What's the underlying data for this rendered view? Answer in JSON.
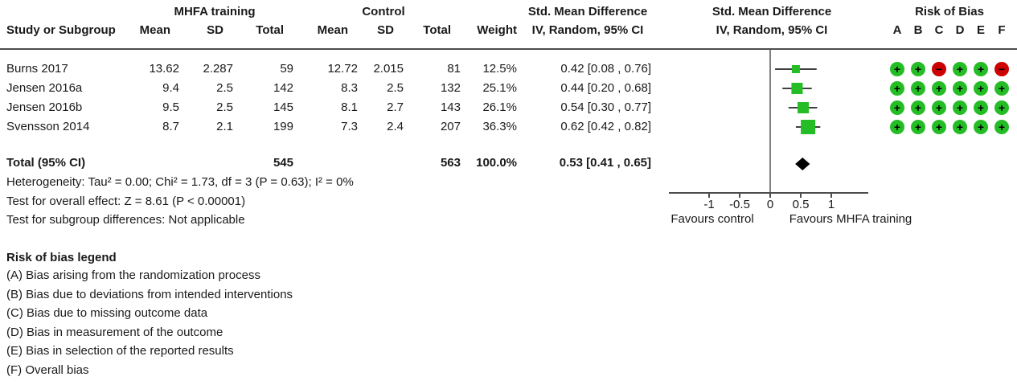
{
  "header": {
    "group1": "MHFA training",
    "group2": "Control",
    "study_col": "Study or Subgroup",
    "mean1": "Mean",
    "sd1": "SD",
    "total1": "Total",
    "mean2": "Mean",
    "sd2": "SD",
    "total2": "Total",
    "weight": "Weight",
    "smd_text_col": {
      "line1": "Std. Mean Difference",
      "line2": "IV, Random, 95% CI"
    },
    "smd_plot_col": {
      "line1": "Std. Mean Difference",
      "line2": "IV, Random, 95% CI"
    },
    "rob_col": {
      "title": "Risk of Bias",
      "letters": [
        "A",
        "B",
        "C",
        "D",
        "E",
        "F"
      ]
    }
  },
  "rows": [
    {
      "study": "Burns 2017",
      "mean1": "13.62",
      "sd1": "2.287",
      "total1": "59",
      "mean2": "12.72",
      "sd2": "2.015",
      "total2": "81",
      "weight": "12.5%",
      "ci": "0.42 [0.08 , 0.76]",
      "bias": [
        {
          "color": "green",
          "sym": "+"
        },
        {
          "color": "green",
          "sym": "+"
        },
        {
          "color": "red",
          "sym": "−"
        },
        {
          "color": "green",
          "sym": "+"
        },
        {
          "color": "green",
          "sym": "+"
        },
        {
          "color": "red",
          "sym": "−"
        }
      ]
    },
    {
      "study": "Jensen 2016a",
      "mean1": "9.4",
      "sd1": "2.5",
      "total1": "142",
      "mean2": "8.3",
      "sd2": "2.5",
      "total2": "132",
      "weight": "25.1%",
      "ci": "0.44 [0.20 , 0.68]",
      "bias": [
        {
          "color": "green",
          "sym": "+"
        },
        {
          "color": "green",
          "sym": "+"
        },
        {
          "color": "green",
          "sym": "+"
        },
        {
          "color": "green",
          "sym": "+"
        },
        {
          "color": "green",
          "sym": "+"
        },
        {
          "color": "green",
          "sym": "+"
        }
      ]
    },
    {
      "study": "Jensen 2016b",
      "mean1": "9.5",
      "sd1": "2.5",
      "total1": "145",
      "mean2": "8.1",
      "sd2": "2.7",
      "total2": "143",
      "weight": "26.1%",
      "ci": "0.54 [0.30 , 0.77]",
      "bias": [
        {
          "color": "green",
          "sym": "+"
        },
        {
          "color": "green",
          "sym": "+"
        },
        {
          "color": "green",
          "sym": "+"
        },
        {
          "color": "green",
          "sym": "+"
        },
        {
          "color": "green",
          "sym": "+"
        },
        {
          "color": "green",
          "sym": "+"
        }
      ]
    },
    {
      "study": "Svensson 2014",
      "mean1": "8.7",
      "sd1": "2.1",
      "total1": "199",
      "mean2": "7.3",
      "sd2": "2.4",
      "total2": "207",
      "weight": "36.3%",
      "ci": "0.62 [0.42 , 0.82]",
      "bias": [
        {
          "color": "green",
          "sym": "+"
        },
        {
          "color": "green",
          "sym": "+"
        },
        {
          "color": "green",
          "sym": "+"
        },
        {
          "color": "green",
          "sym": "+"
        },
        {
          "color": "green",
          "sym": "+"
        },
        {
          "color": "green",
          "sym": "+"
        }
      ]
    }
  ],
  "total_row": {
    "label": "Total (95% CI)",
    "total1": "545",
    "total2": "563",
    "weight": "100.0%",
    "ci": "0.53 [0.41 , 0.65]"
  },
  "footer": {
    "heterogeneity": "Heterogeneity: Tau² = 0.00; Chi² = 1.73, df = 3 (P = 0.63); I² = 0%",
    "overall_effect": "Test for overall effect: Z = 8.61 (P < 0.00001)",
    "subgroup": "Test for subgroup differences: Not applicable"
  },
  "legend": {
    "title": "Risk of bias legend",
    "items": [
      "(A) Bias arising from the randomization process",
      "(B) Bias due to deviations from intended interventions",
      "(C) Bias due to missing outcome data",
      "(D) Bias in measurement of the outcome",
      "(E) Bias in selection of the reported results",
      "(F) Overall bias"
    ]
  },
  "colors": {
    "green": "#25bd25",
    "red": "#cc0000",
    "line": "#4d4d4d",
    "axis_line": "#808080",
    "diamond": "#000000",
    "text": "#1a1a1a"
  },
  "chart_data": {
    "type": "forest",
    "effect_measure": "Std. Mean Difference, IV, Random, 95% CI",
    "studies": [
      {
        "name": "Burns 2017",
        "estimate": 0.42,
        "ci_low": 0.08,
        "ci_high": 0.76,
        "weight_pct": 12.5
      },
      {
        "name": "Jensen 2016a",
        "estimate": 0.44,
        "ci_low": 0.2,
        "ci_high": 0.68,
        "weight_pct": 25.1
      },
      {
        "name": "Jensen 2016b",
        "estimate": 0.54,
        "ci_low": 0.3,
        "ci_high": 0.77,
        "weight_pct": 26.1
      },
      {
        "name": "Svensson 2014",
        "estimate": 0.62,
        "ci_low": 0.42,
        "ci_high": 0.82,
        "weight_pct": 36.3
      }
    ],
    "total": {
      "name": "Total (95% CI)",
      "estimate": 0.53,
      "ci_low": 0.41,
      "ci_high": 0.65,
      "weight_pct": 100.0
    },
    "heterogeneity": {
      "tau2": 0.0,
      "chi2": 1.73,
      "df": 3,
      "p": 0.63,
      "i2_pct": 0
    },
    "overall_effect": {
      "z": 8.61,
      "p": "< 0.00001"
    },
    "axis": {
      "ticks": [
        -1,
        -0.5,
        0,
        0.5,
        1
      ],
      "tick_labels": [
        "-1",
        "-0.5",
        "0",
        "0.5",
        "1"
      ],
      "range_shown": [
        -1.66,
        1.6
      ],
      "favours_left": "Favours control",
      "favours_right": "Favours MHFA training"
    }
  }
}
